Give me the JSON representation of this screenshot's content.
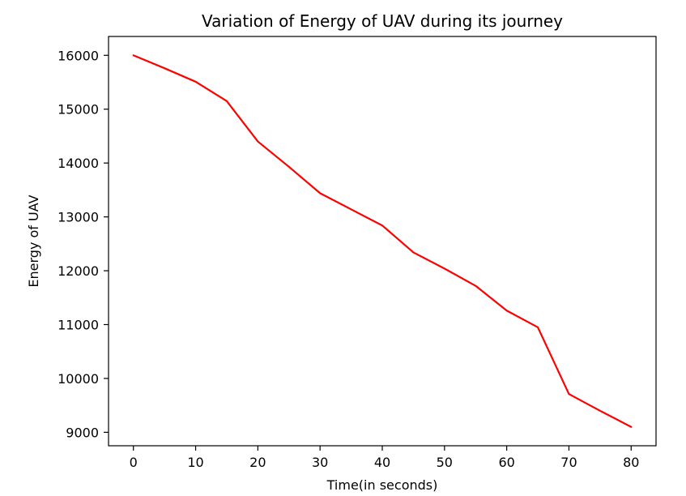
{
  "chart_data": {
    "type": "line",
    "title": "Variation of Energy of UAV during its journey",
    "xlabel": "Time(in seconds)",
    "ylabel": "Energy of UAV",
    "xlim": [
      -4,
      84
    ],
    "ylim": [
      8750,
      16350
    ],
    "xticks": [
      0,
      10,
      20,
      30,
      40,
      50,
      60,
      70,
      80
    ],
    "yticks": [
      9000,
      10000,
      11000,
      12000,
      13000,
      14000,
      15000,
      16000
    ],
    "grid": false,
    "series": [
      {
        "color": "#ff0000",
        "x": [
          0,
          5,
          10,
          15,
          20,
          25,
          30,
          35,
          40,
          45,
          50,
          55,
          60,
          65,
          70,
          75,
          80
        ],
        "y": [
          16000,
          15760,
          15510,
          15150,
          14400,
          13930,
          13440,
          13140,
          12840,
          12340,
          12040,
          11720,
          11260,
          10950,
          9710,
          9400,
          9100
        ]
      }
    ]
  }
}
